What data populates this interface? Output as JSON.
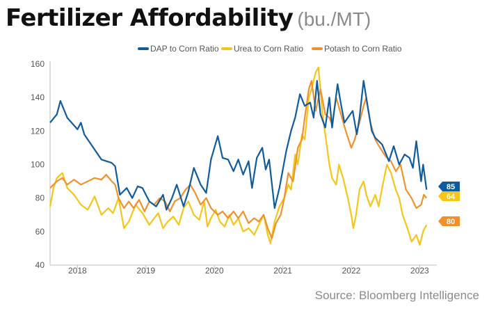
{
  "header": {
    "title": "Fertilizer Affordability",
    "units": "(bu./MT)"
  },
  "source": "Source: Bloomberg Intelligence",
  "chart_data": {
    "type": "line",
    "title": "Fertilizer Affordability",
    "subtitle": "(bu./MT)",
    "ylim": [
      40,
      160
    ],
    "yticks": [
      40,
      60,
      80,
      100,
      120,
      140,
      160
    ],
    "xlim": [
      2017.6,
      2023.25
    ],
    "xticks": [
      2018,
      2019,
      2020,
      2021,
      2022,
      2023
    ],
    "xtick_labels": [
      "2018",
      "2019",
      "2020",
      "2021",
      "2022",
      "2023"
    ],
    "grid": false,
    "legend": "top-right",
    "series": [
      {
        "name": "DAP to Corn Ratio",
        "color": "#0F5B9E",
        "end_label": "85",
        "points": [
          [
            2017.6,
            125
          ],
          [
            2017.7,
            130
          ],
          [
            2017.75,
            138
          ],
          [
            2017.85,
            128
          ],
          [
            2018.0,
            121
          ],
          [
            2018.05,
            125
          ],
          [
            2018.1,
            118
          ],
          [
            2018.2,
            112
          ],
          [
            2018.35,
            103
          ],
          [
            2018.5,
            101
          ],
          [
            2018.55,
            99
          ],
          [
            2018.62,
            82
          ],
          [
            2018.72,
            86
          ],
          [
            2018.8,
            80
          ],
          [
            2018.88,
            87
          ],
          [
            2018.95,
            86
          ],
          [
            2019.05,
            78
          ],
          [
            2019.15,
            75
          ],
          [
            2019.25,
            82
          ],
          [
            2019.3,
            73
          ],
          [
            2019.38,
            80
          ],
          [
            2019.45,
            88
          ],
          [
            2019.55,
            75
          ],
          [
            2019.62,
            84
          ],
          [
            2019.7,
            98
          ],
          [
            2019.8,
            88
          ],
          [
            2019.88,
            83
          ],
          [
            2019.95,
            103
          ],
          [
            2020.05,
            117
          ],
          [
            2020.12,
            104
          ],
          [
            2020.2,
            103
          ],
          [
            2020.28,
            96
          ],
          [
            2020.35,
            103
          ],
          [
            2020.42,
            94
          ],
          [
            2020.5,
            102
          ],
          [
            2020.55,
            86
          ],
          [
            2020.62,
            104
          ],
          [
            2020.7,
            110
          ],
          [
            2020.75,
            97
          ],
          [
            2020.8,
            103
          ],
          [
            2020.88,
            74
          ],
          [
            2020.95,
            86
          ],
          [
            2021.05,
            108
          ],
          [
            2021.12,
            120
          ],
          [
            2021.18,
            128
          ],
          [
            2021.25,
            142
          ],
          [
            2021.32,
            135
          ],
          [
            2021.4,
            137
          ],
          [
            2021.45,
            128
          ],
          [
            2021.5,
            150
          ],
          [
            2021.55,
            130
          ],
          [
            2021.62,
            122
          ],
          [
            2021.68,
            140
          ],
          [
            2021.72,
            122
          ],
          [
            2021.8,
            148
          ],
          [
            2021.85,
            136
          ],
          [
            2021.9,
            125
          ],
          [
            2021.95,
            128
          ],
          [
            2022.02,
            132
          ],
          [
            2022.08,
            118
          ],
          [
            2022.12,
            128
          ],
          [
            2022.18,
            150
          ],
          [
            2022.25,
            132
          ],
          [
            2022.3,
            120
          ],
          [
            2022.35,
            116
          ],
          [
            2022.45,
            112
          ],
          [
            2022.55,
            102
          ],
          [
            2022.62,
            111
          ],
          [
            2022.7,
            100
          ],
          [
            2022.78,
            106
          ],
          [
            2022.85,
            104
          ],
          [
            2022.9,
            98
          ],
          [
            2022.95,
            114
          ],
          [
            2023.02,
            90
          ],
          [
            2023.05,
            100
          ],
          [
            2023.1,
            85
          ]
        ]
      },
      {
        "name": "Urea to Corn Ratio",
        "color": "#F5C518",
        "end_label": "64",
        "points": [
          [
            2017.6,
            75
          ],
          [
            2017.65,
            86
          ],
          [
            2017.7,
            92
          ],
          [
            2017.78,
            95
          ],
          [
            2017.85,
            86
          ],
          [
            2017.95,
            82
          ],
          [
            2018.05,
            76
          ],
          [
            2018.15,
            73
          ],
          [
            2018.25,
            81
          ],
          [
            2018.35,
            70
          ],
          [
            2018.45,
            74
          ],
          [
            2018.52,
            71
          ],
          [
            2018.6,
            80
          ],
          [
            2018.68,
            62
          ],
          [
            2018.75,
            66
          ],
          [
            2018.85,
            76
          ],
          [
            2018.95,
            71
          ],
          [
            2019.05,
            64
          ],
          [
            2019.12,
            68
          ],
          [
            2019.18,
            71
          ],
          [
            2019.25,
            62
          ],
          [
            2019.32,
            66
          ],
          [
            2019.4,
            69
          ],
          [
            2019.48,
            64
          ],
          [
            2019.55,
            74
          ],
          [
            2019.62,
            78
          ],
          [
            2019.7,
            70
          ],
          [
            2019.78,
            67
          ],
          [
            2019.85,
            78
          ],
          [
            2019.9,
            63
          ],
          [
            2019.95,
            68
          ],
          [
            2020.02,
            73
          ],
          [
            2020.08,
            66
          ],
          [
            2020.15,
            63
          ],
          [
            2020.22,
            70
          ],
          [
            2020.28,
            64
          ],
          [
            2020.35,
            68
          ],
          [
            2020.42,
            60
          ],
          [
            2020.5,
            62
          ],
          [
            2020.58,
            58
          ],
          [
            2020.65,
            64
          ],
          [
            2020.72,
            70
          ],
          [
            2020.78,
            58
          ],
          [
            2020.82,
            53
          ],
          [
            2020.88,
            66
          ],
          [
            2020.95,
            75
          ],
          [
            2021.02,
            80
          ],
          [
            2021.08,
            88
          ],
          [
            2021.12,
            85
          ],
          [
            2021.18,
            106
          ],
          [
            2021.22,
            100
          ],
          [
            2021.28,
            118
          ],
          [
            2021.32,
            115
          ],
          [
            2021.38,
            140
          ],
          [
            2021.42,
            145
          ],
          [
            2021.48,
            155
          ],
          [
            2021.52,
            158
          ],
          [
            2021.58,
            130
          ],
          [
            2021.62,
            118
          ],
          [
            2021.68,
            100
          ],
          [
            2021.72,
            92
          ],
          [
            2021.78,
            88
          ],
          [
            2021.82,
            100
          ],
          [
            2021.88,
            92
          ],
          [
            2021.95,
            80
          ],
          [
            2022.0,
            70
          ],
          [
            2022.03,
            62
          ],
          [
            2022.07,
            70
          ],
          [
            2022.12,
            85
          ],
          [
            2022.18,
            90
          ],
          [
            2022.22,
            82
          ],
          [
            2022.28,
            75
          ],
          [
            2022.35,
            82
          ],
          [
            2022.4,
            75
          ],
          [
            2022.45,
            86
          ],
          [
            2022.52,
            100
          ],
          [
            2022.58,
            95
          ],
          [
            2022.65,
            85
          ],
          [
            2022.7,
            80
          ],
          [
            2022.75,
            70
          ],
          [
            2022.82,
            62
          ],
          [
            2022.88,
            54
          ],
          [
            2022.95,
            58
          ],
          [
            2023.0,
            52
          ],
          [
            2023.05,
            60
          ],
          [
            2023.1,
            64
          ]
        ]
      },
      {
        "name": "Potash to Corn Ratio",
        "color": "#F0912E",
        "end_label": "80",
        "points": [
          [
            2017.6,
            86
          ],
          [
            2017.7,
            90
          ],
          [
            2017.78,
            92
          ],
          [
            2017.85,
            88
          ],
          [
            2017.95,
            91
          ],
          [
            2018.05,
            88
          ],
          [
            2018.15,
            90
          ],
          [
            2018.25,
            92
          ],
          [
            2018.35,
            91
          ],
          [
            2018.42,
            94
          ],
          [
            2018.5,
            90
          ],
          [
            2018.55,
            88
          ],
          [
            2018.6,
            80
          ],
          [
            2018.68,
            74
          ],
          [
            2018.75,
            78
          ],
          [
            2018.82,
            74
          ],
          [
            2018.9,
            79
          ],
          [
            2018.98,
            72
          ],
          [
            2019.05,
            78
          ],
          [
            2019.12,
            76
          ],
          [
            2019.2,
            80
          ],
          [
            2019.28,
            78
          ],
          [
            2019.35,
            72
          ],
          [
            2019.42,
            78
          ],
          [
            2019.5,
            80
          ],
          [
            2019.58,
            85
          ],
          [
            2019.65,
            88
          ],
          [
            2019.72,
            83
          ],
          [
            2019.8,
            76
          ],
          [
            2019.88,
            80
          ],
          [
            2019.95,
            74
          ],
          [
            2020.05,
            70
          ],
          [
            2020.12,
            72
          ],
          [
            2020.2,
            68
          ],
          [
            2020.28,
            72
          ],
          [
            2020.35,
            68
          ],
          [
            2020.42,
            72
          ],
          [
            2020.5,
            65
          ],
          [
            2020.58,
            68
          ],
          [
            2020.65,
            66
          ],
          [
            2020.72,
            70
          ],
          [
            2020.78,
            62
          ],
          [
            2020.84,
            56
          ],
          [
            2020.9,
            65
          ],
          [
            2020.97,
            70
          ],
          [
            2021.02,
            80
          ],
          [
            2021.08,
            95
          ],
          [
            2021.15,
            90
          ],
          [
            2021.22,
            110
          ],
          [
            2021.28,
            115
          ],
          [
            2021.32,
            128
          ],
          [
            2021.38,
            145
          ],
          [
            2021.42,
            150
          ],
          [
            2021.48,
            132
          ],
          [
            2021.55,
            145
          ],
          [
            2021.62,
            130
          ],
          [
            2021.68,
            128
          ],
          [
            2021.72,
            124
          ],
          [
            2021.78,
            140
          ],
          [
            2021.85,
            130
          ],
          [
            2021.92,
            120
          ],
          [
            2022.0,
            110
          ],
          [
            2022.05,
            115
          ],
          [
            2022.12,
            125
          ],
          [
            2022.18,
            135
          ],
          [
            2022.22,
            140
          ],
          [
            2022.28,
            125
          ],
          [
            2022.35,
            115
          ],
          [
            2022.42,
            110
          ],
          [
            2022.5,
            105
          ],
          [
            2022.58,
            102
          ],
          [
            2022.65,
            96
          ],
          [
            2022.72,
            100
          ],
          [
            2022.8,
            85
          ],
          [
            2022.88,
            80
          ],
          [
            2022.95,
            74
          ],
          [
            2023.02,
            76
          ],
          [
            2023.06,
            82
          ],
          [
            2023.1,
            80
          ]
        ]
      }
    ]
  }
}
